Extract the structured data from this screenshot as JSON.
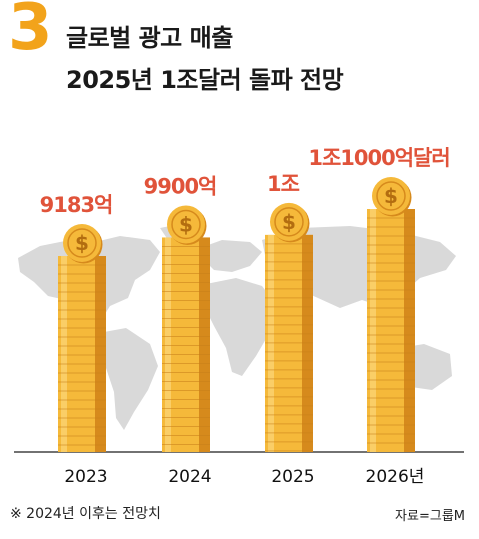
{
  "header": {
    "number": "3",
    "title_line1": "글로벌 광고 매출",
    "title_line2": "2025년 1조달러 돌파 전망"
  },
  "chart_data": {
    "type": "bar",
    "categories": [
      "2023",
      "2024",
      "2025",
      "2026년"
    ],
    "values": [
      9183,
      9900,
      10000,
      11000
    ],
    "value_labels": [
      "9183억",
      "9900억",
      "1조",
      "1조1000억달러"
    ],
    "ylim": [
      0,
      11000
    ],
    "unit": "억달러",
    "grid": false,
    "colors": {
      "label": "#e0533a",
      "coin_main": "#f5b93a",
      "coin_dark": "#d68a1c",
      "coin_light": "#fcd77a",
      "map": "#d9d9d9",
      "baseline": "#444444"
    }
  },
  "footer": {
    "footnote": "※ 2024년 이후는 전망치",
    "source": "자료=그룹M"
  }
}
